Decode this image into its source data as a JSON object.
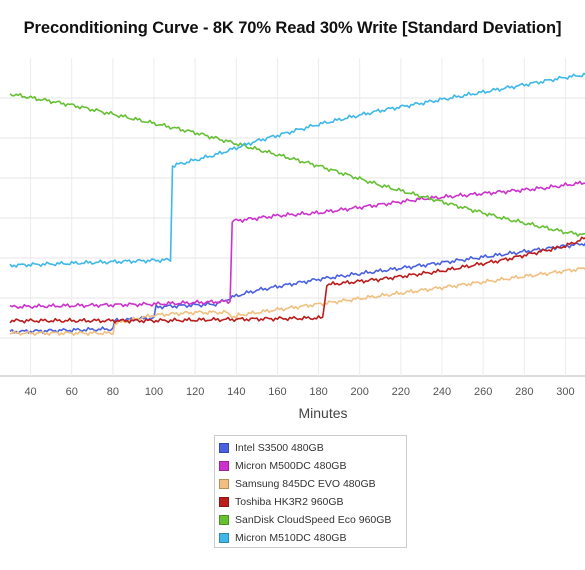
{
  "chart_data": {
    "type": "line",
    "title": "Preconditioning Curve - 8K 70% Read 30% Write [Standard Deviation]",
    "xlabel": "Minutes",
    "ylabel": "",
    "xlim": [
      30,
      310
    ],
    "x_ticks": [
      40,
      60,
      80,
      100,
      120,
      140,
      160,
      180,
      200,
      220,
      240,
      260,
      280,
      300
    ],
    "grid": true,
    "legend_position": "bottom-center",
    "series": [
      {
        "name": "Intel S3500 480GB",
        "color": "#4a60e0",
        "x": [
          30,
          80,
          81,
          100,
          101,
          130,
          140,
          150,
          165,
          180,
          200,
          220,
          240,
          260,
          280,
          300,
          310
        ],
        "y": [
          0.16,
          0.17,
          0.2,
          0.21,
          0.25,
          0.26,
          0.29,
          0.31,
          0.33,
          0.35,
          0.37,
          0.39,
          0.41,
          0.43,
          0.45,
          0.47,
          0.48
        ]
      },
      {
        "name": "Micron M500DC 480GB",
        "color": "#cc33cc",
        "x": [
          30,
          100,
          137,
          138,
          160,
          180,
          200,
          230,
          260,
          290,
          310
        ],
        "y": [
          0.25,
          0.26,
          0.27,
          0.56,
          0.58,
          0.59,
          0.61,
          0.64,
          0.66,
          0.68,
          0.7
        ]
      },
      {
        "name": "Samsung 845DC EVO 480GB",
        "color": "#f0c080",
        "x": [
          30,
          80,
          81,
          100,
          120,
          135,
          140,
          141,
          160,
          180,
          200,
          230,
          260,
          290,
          310
        ],
        "y": [
          0.155,
          0.155,
          0.19,
          0.22,
          0.23,
          0.23,
          0.21,
          0.22,
          0.24,
          0.26,
          0.28,
          0.31,
          0.34,
          0.37,
          0.39
        ]
      },
      {
        "name": "Toshiba HK3R2 960GB",
        "color": "#bb1c1c",
        "x": [
          30,
          100,
          140,
          182,
          184,
          210,
          240,
          270,
          300,
          310
        ],
        "y": [
          0.2,
          0.2,
          0.205,
          0.21,
          0.33,
          0.35,
          0.38,
          0.42,
          0.47,
          0.5
        ]
      },
      {
        "name": "SanDisk CloudSpeed Eco 960GB",
        "color": "#66c033",
        "x": [
          30,
          60,
          90,
          120,
          150,
          180,
          210,
          240,
          270,
          300,
          310
        ],
        "y": [
          1.02,
          0.98,
          0.93,
          0.88,
          0.82,
          0.76,
          0.69,
          0.63,
          0.57,
          0.52,
          0.51
        ]
      },
      {
        "name": "Micron M510DC 480GB",
        "color": "#3fb8e8",
        "x": [
          30,
          108,
          109,
          130,
          150,
          180,
          210,
          240,
          270,
          300,
          310
        ],
        "y": [
          0.4,
          0.42,
          0.76,
          0.8,
          0.85,
          0.91,
          0.96,
          1.0,
          1.04,
          1.08,
          1.09
        ]
      }
    ]
  }
}
